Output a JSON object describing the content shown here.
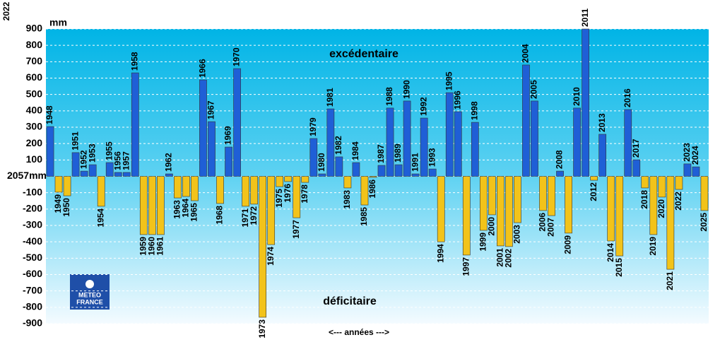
{
  "chart_data": {
    "type": "bar",
    "corner_text": "2022",
    "y_unit": "mm",
    "annotation_top": "excédentaire",
    "annotation_bottom": "déficitaire",
    "x_label": "<--- années --->",
    "logo_text": [
      "METEO",
      "FRANCE"
    ],
    "categories": [
      "1948",
      "1949",
      "1950",
      "1951",
      "1952",
      "1953",
      "1954",
      "1955",
      "1956",
      "1957",
      "1958",
      "1959",
      "1960",
      "1961",
      "1962",
      "1963",
      "1964",
      "1965",
      "1966",
      "1967",
      "1968",
      "1969",
      "1970",
      "1971",
      "1972",
      "1973",
      "1974",
      "1975",
      "1976",
      "1977",
      "1978",
      "1979",
      "1980",
      "1981",
      "1982",
      "1983",
      "1984",
      "1985",
      "1986",
      "1987",
      "1988",
      "1989",
      "1990",
      "1991",
      "1992",
      "1993",
      "1994",
      "1995",
      "1996",
      "1997",
      "1998",
      "1999",
      "2000",
      "2001",
      "2002",
      "2003",
      "2004",
      "2005",
      "2006",
      "2007",
      "2008",
      "2009",
      "2010",
      "2011",
      "2012",
      "2013",
      "2014",
      "2015",
      "2016",
      "2017",
      "2018",
      "2019",
      "2020",
      "2021",
      "2022",
      "2023",
      "2024",
      "2025"
    ],
    "values": [
      304,
      -97,
      -119,
      145,
      32,
      71,
      -183,
      84,
      24,
      24,
      632,
      -356,
      -356,
      -356,
      15,
      -132,
      -123,
      -149,
      589,
      334,
      -166,
      179,
      658,
      -183,
      -170,
      -861,
      -417,
      -63,
      -32,
      -253,
      -37,
      231,
      15,
      412,
      119,
      -71,
      84,
      -175,
      -6,
      67,
      417,
      71,
      460,
      15,
      356,
      45,
      -400,
      511,
      395,
      -481,
      330,
      -330,
      -235,
      -425,
      -429,
      -283,
      680,
      460,
      -209,
      -240,
      32,
      -347,
      417,
      900,
      -24,
      257,
      -395,
      -486,
      408,
      101,
      -71,
      -356,
      -127,
      -568,
      -80,
      76,
      58,
      -209
    ],
    "positive_color": "#1f5fd6",
    "negative_color": "#f2c31a",
    "ylim": [
      -900,
      900
    ],
    "yticks": [
      -900,
      -800,
      -700,
      -600,
      -500,
      -400,
      -300,
      -200,
      -100,
      {
        "value": 0,
        "label": "2057mm"
      },
      100,
      200,
      300,
      400,
      500,
      600,
      700,
      800,
      900
    ],
    "grid": true
  }
}
